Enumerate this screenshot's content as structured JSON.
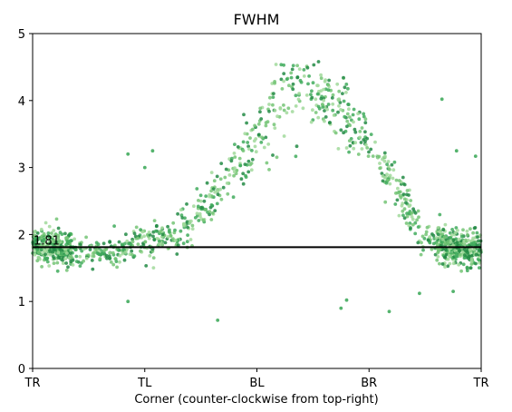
{
  "chart_data": {
    "type": "scatter",
    "title": "FWHM",
    "xlabel": "Corner (counter-clockwise from top-right)",
    "ylabel": "",
    "xlim": [
      0,
      4
    ],
    "ylim": [
      0,
      5
    ],
    "xticks": [
      {
        "value": 0,
        "label": "TR"
      },
      {
        "value": 1,
        "label": "TL"
      },
      {
        "value": 2,
        "label": "BL"
      },
      {
        "value": 3,
        "label": "BR"
      },
      {
        "value": 4,
        "label": "TR"
      }
    ],
    "yticks": [
      0,
      1,
      2,
      3,
      4,
      5
    ],
    "grid": false,
    "reference_line": {
      "y": 1.81,
      "label": "1.81",
      "color": "#000000"
    },
    "trend_knots": [
      {
        "x": 0.0,
        "y": 1.85
      },
      {
        "x": 0.25,
        "y": 1.8
      },
      {
        "x": 0.5,
        "y": 1.72
      },
      {
        "x": 0.75,
        "y": 1.75
      },
      {
        "x": 1.0,
        "y": 1.9
      },
      {
        "x": 1.25,
        "y": 1.95
      },
      {
        "x": 1.5,
        "y": 2.35
      },
      {
        "x": 1.75,
        "y": 2.9
      },
      {
        "x": 2.0,
        "y": 3.45
      },
      {
        "x": 2.25,
        "y": 4.1
      },
      {
        "x": 2.5,
        "y": 4.15
      },
      {
        "x": 2.75,
        "y": 3.85
      },
      {
        "x": 3.0,
        "y": 3.35
      },
      {
        "x": 3.25,
        "y": 2.7
      },
      {
        "x": 3.5,
        "y": 1.95
      },
      {
        "x": 3.75,
        "y": 1.8
      },
      {
        "x": 4.0,
        "y": 1.75
      }
    ],
    "outliers": [
      {
        "x": 0.85,
        "y": 1.0
      },
      {
        "x": 0.85,
        "y": 3.2
      },
      {
        "x": 1.0,
        "y": 3.0
      },
      {
        "x": 1.07,
        "y": 3.25
      },
      {
        "x": 1.65,
        "y": 0.72
      },
      {
        "x": 2.75,
        "y": 0.9
      },
      {
        "x": 2.8,
        "y": 1.02
      },
      {
        "x": 3.18,
        "y": 0.85
      },
      {
        "x": 3.45,
        "y": 1.12
      },
      {
        "x": 3.65,
        "y": 4.02
      },
      {
        "x": 3.78,
        "y": 3.25
      },
      {
        "x": 3.75,
        "y": 1.15
      },
      {
        "x": 3.95,
        "y": 3.17
      }
    ],
    "point_count": 1400,
    "colors": [
      "#a1d99b",
      "#74c476",
      "#41ab5d",
      "#238b45"
    ]
  }
}
